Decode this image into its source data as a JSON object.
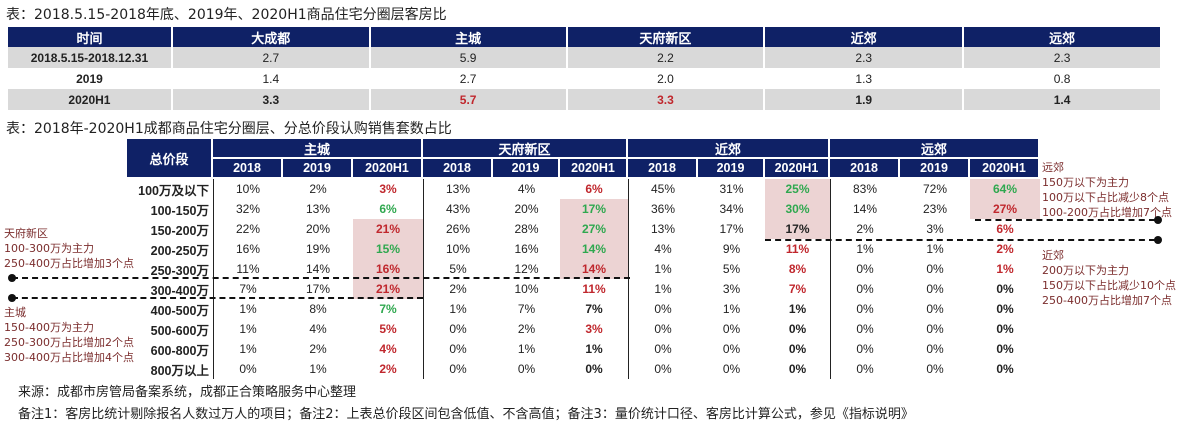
{
  "table1": {
    "title": "表：2018.5.15-2018年底、2019年、2020H1商品住宅分圈层客房比",
    "headers": [
      "时间",
      "大成都",
      "主城",
      "天府新区",
      "近郊",
      "远郊"
    ],
    "rows": [
      {
        "cells": [
          "2018.5.15-2018.12.31",
          "2.7",
          "5.9",
          "2.2",
          "2.3",
          "2.3"
        ],
        "colors": [
          "",
          "",
          "",
          "",
          "",
          ""
        ]
      },
      {
        "cells": [
          "2019",
          "1.4",
          "2.7",
          "2.0",
          "1.3",
          "0.8"
        ],
        "colors": [
          "",
          "",
          "",
          "",
          "",
          ""
        ]
      },
      {
        "cells": [
          "2020H1",
          "3.3",
          "5.7",
          "3.3",
          "1.9",
          "1.4"
        ],
        "colors": [
          "",
          "",
          "red",
          "red",
          "",
          ""
        ]
      }
    ]
  },
  "table2": {
    "title": "表：2018年-2020H1成都商品住宅分圈层、分总价段认购销售套数占比",
    "corner": "总价段",
    "groups": [
      "主城",
      "天府新区",
      "近郊",
      "远郊"
    ],
    "years": [
      "2018",
      "2019",
      "2020H1"
    ],
    "rows": [
      {
        "label": "100万及以下",
        "values": [
          "10%",
          "2%",
          "3%",
          "13%",
          "4%",
          "6%",
          "45%",
          "31%",
          "25%",
          "83%",
          "72%",
          "64%"
        ],
        "colors": "..r..r..g..g"
      },
      {
        "label": "100-150万",
        "values": [
          "32%",
          "13%",
          "6%",
          "43%",
          "20%",
          "17%",
          "36%",
          "34%",
          "30%",
          "14%",
          "23%",
          "27%"
        ],
        "colors": "..g..g..g..r"
      },
      {
        "label": "150-200万",
        "values": [
          "22%",
          "20%",
          "21%",
          "26%",
          "28%",
          "27%",
          "13%",
          "17%",
          "17%",
          "2%",
          "3%",
          "6%"
        ],
        "colors": "..r..g..k..r"
      },
      {
        "label": "200-250万",
        "values": [
          "16%",
          "19%",
          "15%",
          "10%",
          "16%",
          "14%",
          "4%",
          "9%",
          "11%",
          "1%",
          "1%",
          "2%"
        ],
        "colors": "..g..g..r..r"
      },
      {
        "label": "250-300万",
        "values": [
          "11%",
          "14%",
          "16%",
          "5%",
          "12%",
          "14%",
          "1%",
          "5%",
          "8%",
          "0%",
          "0%",
          "1%"
        ],
        "colors": "..r..r..r..r"
      },
      {
        "label": "300-400万",
        "values": [
          "7%",
          "17%",
          "21%",
          "2%",
          "10%",
          "11%",
          "1%",
          "3%",
          "7%",
          "0%",
          "0%",
          "0%"
        ],
        "colors": "..r..r..r..k"
      },
      {
        "label": "400-500万",
        "values": [
          "1%",
          "8%",
          "7%",
          "1%",
          "7%",
          "7%",
          "0%",
          "1%",
          "1%",
          "0%",
          "0%",
          "0%"
        ],
        "colors": "..g..k..k..k"
      },
      {
        "label": "500-600万",
        "values": [
          "1%",
          "4%",
          "5%",
          "0%",
          "2%",
          "3%",
          "0%",
          "0%",
          "0%",
          "0%",
          "0%",
          "0%"
        ],
        "colors": "..r..r..k..k"
      },
      {
        "label": "600-800万",
        "values": [
          "1%",
          "2%",
          "4%",
          "0%",
          "1%",
          "1%",
          "0%",
          "0%",
          "0%",
          "0%",
          "0%",
          "0%"
        ],
        "colors": "..r..k..k..k"
      },
      {
        "label": "800万以上",
        "values": [
          "0%",
          "1%",
          "2%",
          "0%",
          "0%",
          "0%",
          "0%",
          "0%",
          "0%",
          "0%",
          "0%",
          "0%"
        ],
        "colors": "..r..k..k..k"
      }
    ],
    "highlight": {
      "主城": [
        2,
        5
      ],
      "天府新区": [
        1,
        4
      ],
      "近郊": [
        0,
        2
      ],
      "远郊": [
        0,
        1
      ]
    }
  },
  "annotations": {
    "tianfu": [
      "天府新区",
      "100-300万为主力",
      "250-400万占比增加3个点"
    ],
    "main": [
      "主城",
      "150-400万为主力",
      "250-300万占比增加2个点",
      "300-400万占比增加4个点"
    ],
    "far": [
      "远郊",
      "150万以下为主力",
      "100万以下占比减少8个点",
      "100-200万占比增加7个点"
    ],
    "near": [
      "近郊",
      "200万以下为主力",
      "150万以下占比减少10个点",
      "250-400万占比增加7个点"
    ]
  },
  "footer": {
    "source": "来源：成都市房管局备案系统，成都正合策略服务中心整理",
    "notes": "备注1：客房比统计剔除报名人数过万人的项目；备注2：上表总价段区间包含低值、不含高值；备注3：量价统计口径、客房比计算公式，参见《指标说明》"
  },
  "colors": {
    "header": "#0f2166",
    "red": "#c0272d",
    "green": "#2fa84f",
    "highlight": "#ecd3d3",
    "stripe": "#d9d9d9"
  }
}
